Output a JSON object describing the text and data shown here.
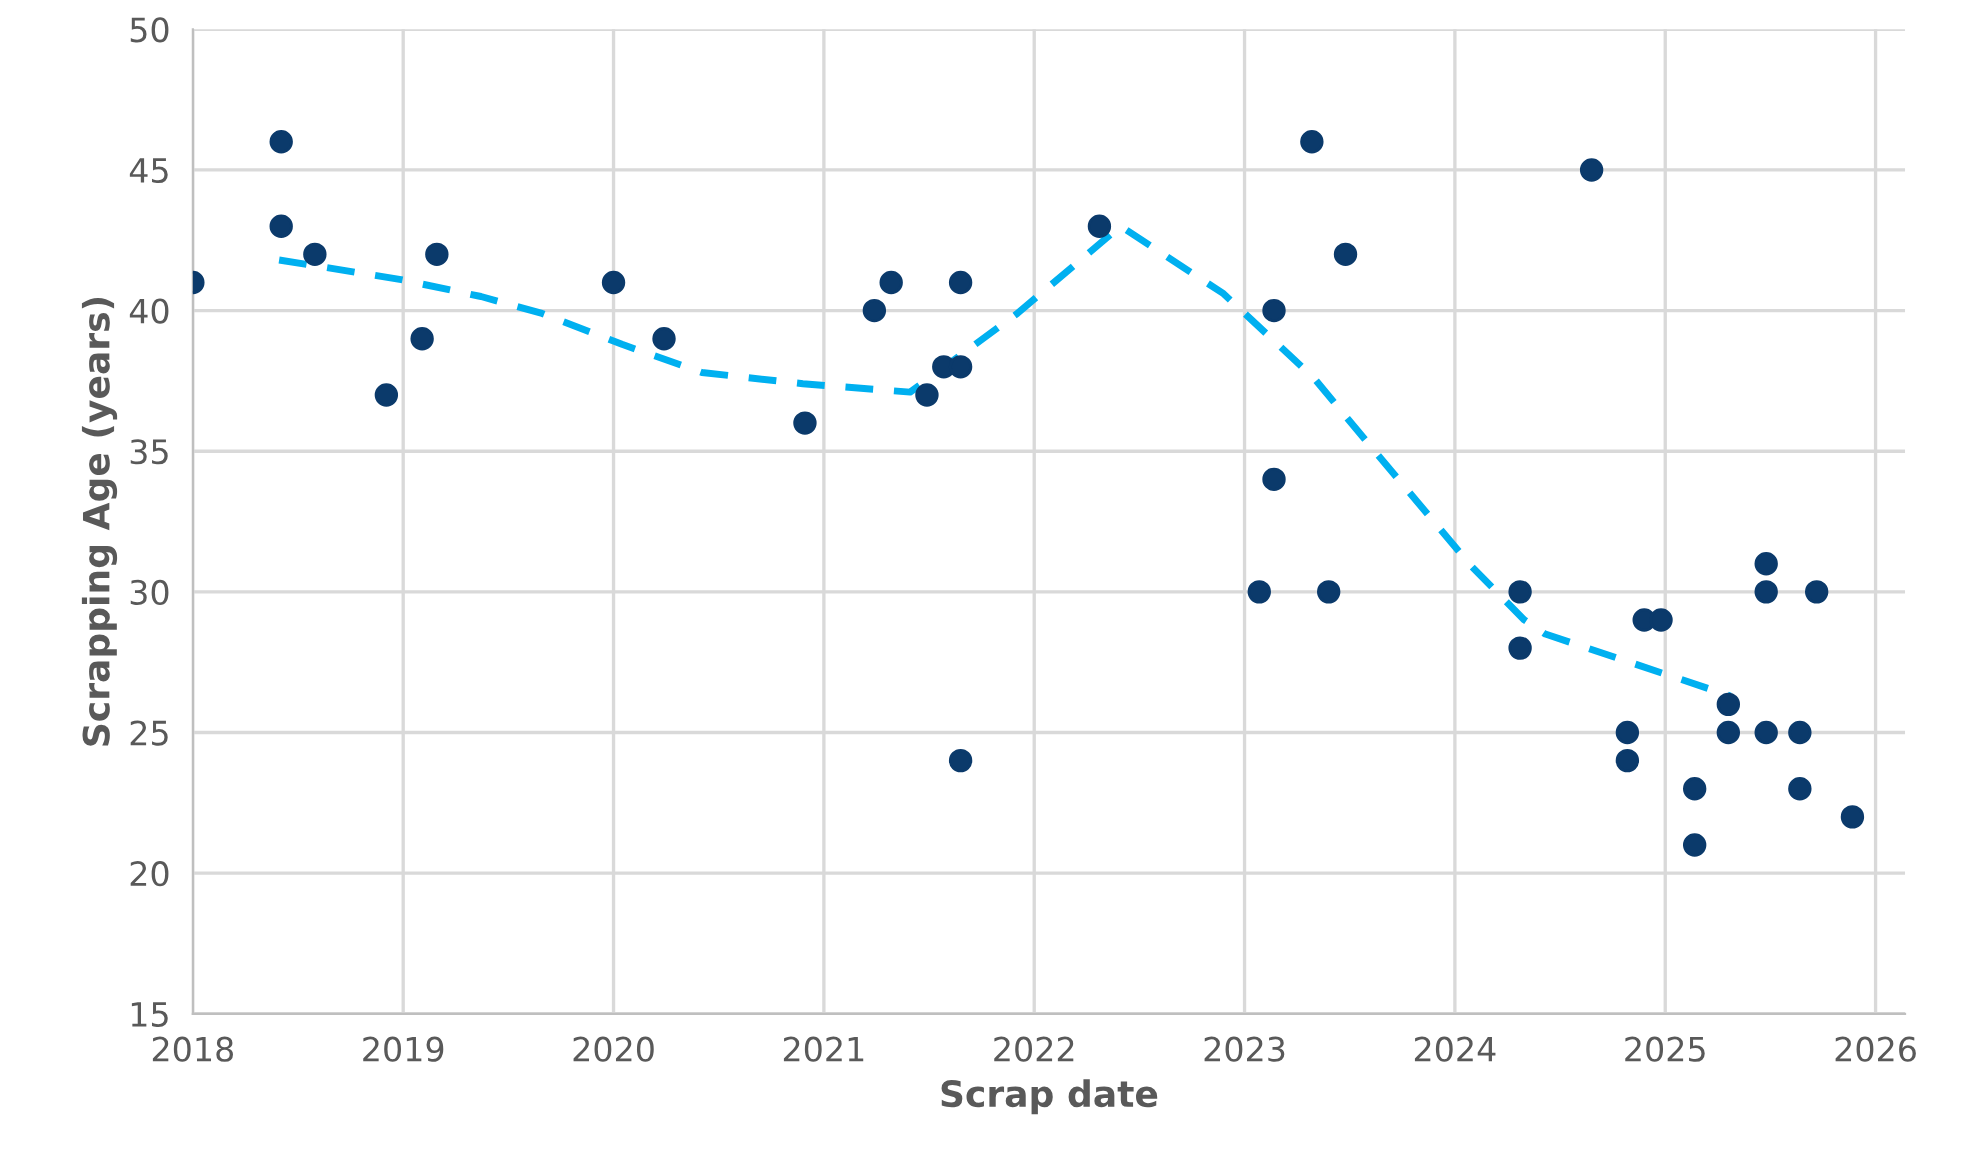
{
  "chart_data": {
    "type": "scatter",
    "xlabel": "Scrap date",
    "ylabel": "Scrapping Age (years)",
    "xlim": [
      2018,
      2026.14
    ],
    "xticks": [
      2018,
      2019,
      2020,
      2021,
      2022,
      2023,
      2024,
      2025,
      2026
    ],
    "ylim": [
      15,
      50
    ],
    "yticks": [
      15,
      20,
      25,
      30,
      35,
      40,
      45,
      50
    ],
    "grid": true,
    "series": [
      {
        "marker": "circle",
        "color": "#0b3a6b",
        "x": [
          2018.0,
          2018.42,
          2018.42,
          2018.58,
          2018.92,
          2019.09,
          2019.16,
          2020.0,
          2020.24,
          2020.91,
          2021.24,
          2021.32,
          2021.49,
          2021.57,
          2021.65,
          2021.65,
          2021.65,
          2022.31,
          2023.07,
          2023.14,
          2023.14,
          2023.32,
          2023.4,
          2023.48,
          2024.31,
          2024.31,
          2024.65,
          2024.82,
          2024.82,
          2024.9,
          2024.98,
          2025.14,
          2025.14,
          2025.3,
          2025.3,
          2025.48,
          2025.48,
          2025.48,
          2025.64,
          2025.64,
          2025.72,
          2025.89
        ],
        "values": [
          41,
          46,
          43,
          42,
          37,
          39,
          42,
          41,
          39,
          36,
          40,
          41,
          37,
          38,
          41,
          38,
          24,
          43,
          30,
          40,
          34,
          46,
          30,
          42,
          30,
          28,
          45,
          25,
          24,
          29,
          29,
          23,
          21,
          26,
          25,
          31,
          30,
          25,
          25,
          23,
          30,
          22
        ]
      },
      {
        "type": "line",
        "color": "#00b0f0",
        "line_style": "dashed",
        "x": [
          2018.41,
          2018.99,
          2019.37,
          2019.66,
          2020.04,
          2020.42,
          2020.9,
          2021.41,
          2021.92,
          2022.41,
          2022.9,
          2023.33,
          2023.63,
          2024.08,
          2024.33,
          2024.43,
          2025.31
        ],
        "values": [
          41.8,
          41.1,
          40.5,
          39.9,
          38.8,
          37.8,
          37.4,
          37.1,
          39.9,
          43.0,
          40.6,
          37.6,
          34.9,
          30.9,
          29.0,
          28.5,
          26.3
        ]
      }
    ]
  }
}
